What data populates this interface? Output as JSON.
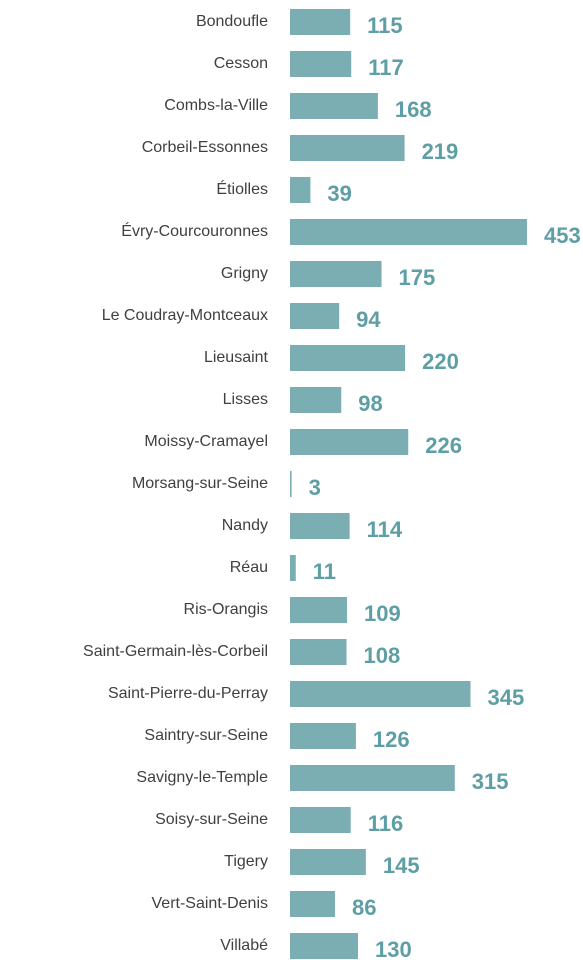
{
  "chart_data": {
    "type": "bar",
    "orientation": "horizontal",
    "categories": [
      "Bondoufle",
      "Cesson",
      "Combs-la-Ville",
      "Corbeil-Essonnes",
      "Étiolles",
      "Évry-Courcouronnes",
      "Grigny",
      "Le Coudray-Montceaux",
      "Lieusaint",
      "Lisses",
      "Moissy-Cramayel",
      "Morsang-sur-Seine",
      "Nandy",
      "Réau",
      "Ris-Orangis",
      "Saint-Germain-lès-Corbeil",
      "Saint-Pierre-du-Perray",
      "Saintry-sur-Seine",
      "Savigny-le-Temple",
      "Soisy-sur-Seine",
      "Tigery",
      "Vert-Saint-Denis",
      "Villabé"
    ],
    "values": [
      115,
      117,
      168,
      219,
      39,
      453,
      175,
      94,
      220,
      98,
      226,
      3,
      114,
      11,
      109,
      108,
      345,
      126,
      315,
      116,
      145,
      86,
      130
    ],
    "color": "#7aaeb3",
    "label_color": "#5e9ea5"
  }
}
